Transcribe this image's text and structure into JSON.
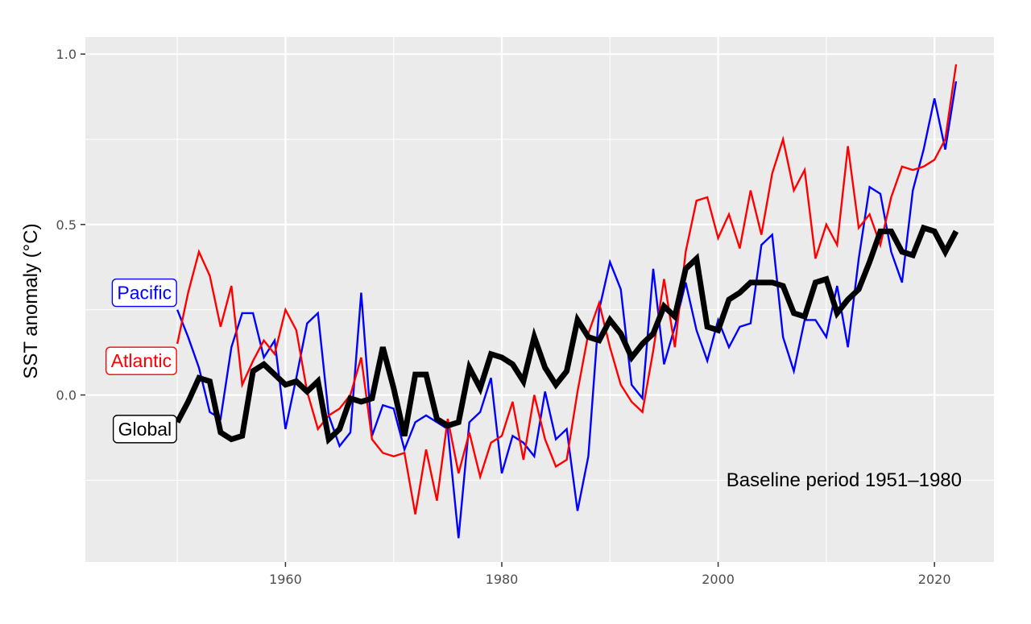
{
  "chart_data": {
    "type": "line",
    "title": "",
    "xlabel": "",
    "ylabel": "SST anomaly (°C)",
    "xlim": [
      1941.5,
      2025.5
    ],
    "ylim": [
      -0.49,
      1.05
    ],
    "xticks": [
      1960,
      1980,
      2000,
      2020
    ],
    "yticks": [
      0.0,
      0.5,
      1.0
    ],
    "ytick_labels": [
      "0.0",
      "0.5",
      "1.0"
    ],
    "grid": true,
    "legend": "none (direct labels at left)",
    "annotation": "Baseline period 1951–1980",
    "x": [
      1950,
      1951,
      1952,
      1953,
      1954,
      1955,
      1956,
      1957,
      1958,
      1959,
      1960,
      1961,
      1962,
      1963,
      1964,
      1965,
      1966,
      1967,
      1968,
      1969,
      1970,
      1971,
      1972,
      1973,
      1974,
      1975,
      1976,
      1977,
      1978,
      1979,
      1980,
      1981,
      1982,
      1983,
      1984,
      1985,
      1986,
      1987,
      1988,
      1989,
      1990,
      1991,
      1992,
      1993,
      1994,
      1995,
      1996,
      1997,
      1998,
      1999,
      2000,
      2001,
      2002,
      2003,
      2004,
      2005,
      2006,
      2007,
      2008,
      2009,
      2010,
      2011,
      2012,
      2013,
      2014,
      2015,
      2016,
      2017,
      2018,
      2019,
      2020,
      2021,
      2022
    ],
    "series": [
      {
        "name": "Pacific",
        "color": "#0000ff",
        "stroke_width": 2.4,
        "values": [
          0.25,
          0.17,
          0.08,
          -0.05,
          -0.07,
          0.14,
          0.24,
          0.24,
          0.11,
          0.16,
          -0.1,
          0.05,
          0.21,
          0.24,
          -0.06,
          -0.15,
          -0.11,
          0.3,
          -0.12,
          -0.03,
          -0.04,
          -0.16,
          -0.08,
          -0.06,
          -0.08,
          -0.1,
          -0.42,
          -0.08,
          -0.05,
          0.05,
          -0.23,
          -0.12,
          -0.14,
          -0.18,
          0.01,
          -0.13,
          -0.1,
          -0.34,
          -0.18,
          0.25,
          0.39,
          0.31,
          0.03,
          -0.01,
          0.37,
          0.09,
          0.2,
          0.33,
          0.19,
          0.1,
          0.22,
          0.14,
          0.2,
          0.21,
          0.44,
          0.47,
          0.17,
          0.07,
          0.22,
          0.22,
          0.17,
          0.32,
          0.14,
          0.4,
          0.61,
          0.59,
          0.42,
          0.33,
          0.6,
          0.72,
          0.87,
          0.72,
          0.92
        ]
      },
      {
        "name": "Atlantic",
        "color": "#ff0000",
        "stroke_width": 2.4,
        "values": [
          0.15,
          0.3,
          0.42,
          0.35,
          0.2,
          0.32,
          0.03,
          0.1,
          0.16,
          0.12,
          0.25,
          0.19,
          0.01,
          -0.1,
          -0.06,
          -0.04,
          0.0,
          0.11,
          -0.13,
          -0.17,
          -0.18,
          -0.17,
          -0.35,
          -0.16,
          -0.31,
          -0.07,
          -0.23,
          -0.11,
          -0.24,
          -0.14,
          -0.12,
          -0.02,
          -0.19,
          0.0,
          -0.13,
          -0.21,
          -0.19,
          0.01,
          0.18,
          0.27,
          0.14,
          0.03,
          -0.02,
          -0.05,
          0.13,
          0.34,
          0.14,
          0.42,
          0.57,
          0.58,
          0.46,
          0.53,
          0.43,
          0.6,
          0.47,
          0.65,
          0.75,
          0.6,
          0.66,
          0.4,
          0.5,
          0.44,
          0.73,
          0.49,
          0.53,
          0.44,
          0.58,
          0.67,
          0.66,
          0.67,
          0.69,
          0.75,
          0.97
        ]
      },
      {
        "name": "Global",
        "color": "#000000",
        "stroke_width": 7,
        "values": [
          -0.08,
          -0.02,
          0.05,
          0.04,
          -0.11,
          -0.13,
          -0.12,
          0.07,
          0.09,
          0.06,
          0.03,
          0.04,
          0.01,
          0.04,
          -0.13,
          -0.1,
          -0.01,
          -0.02,
          -0.01,
          0.14,
          0.02,
          -0.12,
          0.06,
          0.06,
          -0.07,
          -0.09,
          -0.08,
          0.08,
          0.02,
          0.12,
          0.11,
          0.09,
          0.04,
          0.17,
          0.08,
          0.03,
          0.07,
          0.22,
          0.17,
          0.16,
          0.22,
          0.18,
          0.11,
          0.15,
          0.18,
          0.26,
          0.23,
          0.37,
          0.4,
          0.2,
          0.19,
          0.28,
          0.3,
          0.33,
          0.33,
          0.33,
          0.32,
          0.24,
          0.23,
          0.33,
          0.34,
          0.24,
          0.28,
          0.31,
          0.39,
          0.48,
          0.48,
          0.42,
          0.41,
          0.49,
          0.48,
          0.42,
          0.48
        ]
      }
    ]
  }
}
